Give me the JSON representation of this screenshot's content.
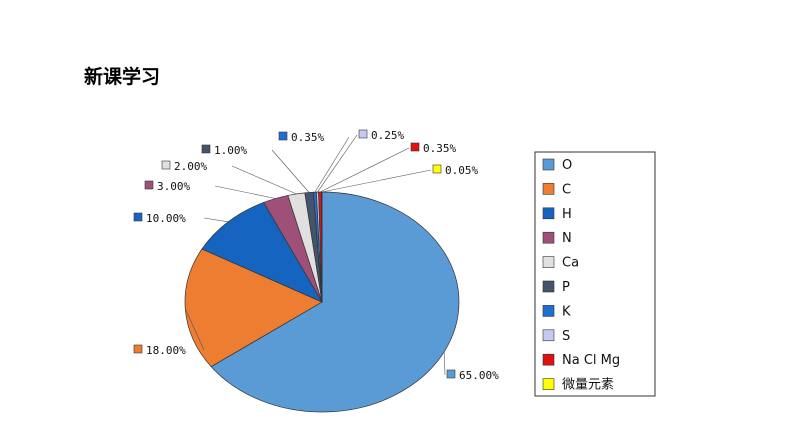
{
  "slide": {
    "title": "新课学习"
  },
  "chart_data": {
    "type": "pie",
    "title": "",
    "categories": [
      "O",
      "C",
      "H",
      "N",
      "Ca",
      "P",
      "K",
      "S",
      "Na Cl Mg",
      "微量元素"
    ],
    "values": [
      65.0,
      18.0,
      10.0,
      3.0,
      2.0,
      1.0,
      0.35,
      0.25,
      0.35,
      0.05
    ],
    "labels": [
      "65.00%",
      "18.00%",
      "10.00%",
      "3.00%",
      "2.00%",
      "1.00%",
      "0.35%",
      "0.25%",
      "0.35%",
      "0.05%"
    ],
    "colors": [
      "#5b9bd5",
      "#ed7d31",
      "#1565c0",
      "#9e5078",
      "#e0e0e0",
      "#44546a",
      "#1f6fd0",
      "#c5c8f0",
      "#e01010",
      "#ffff00"
    ],
    "legend_position": "right"
  }
}
